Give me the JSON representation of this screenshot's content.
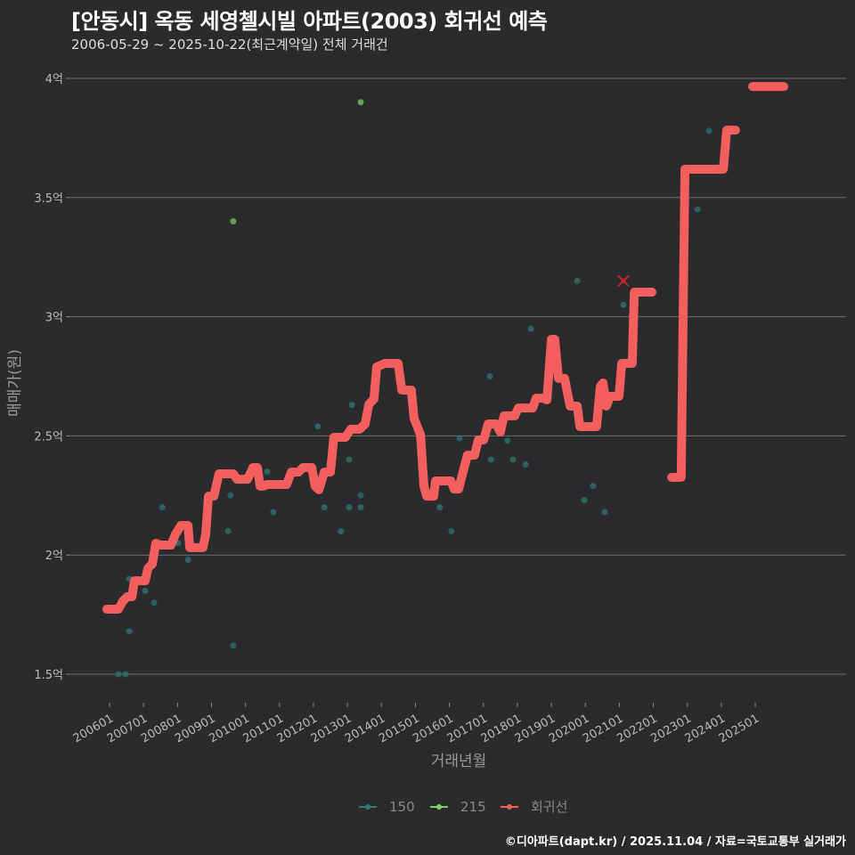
{
  "header": {
    "title": "[안동시] 옥동 세영첼시빌 아파트(2003) 회귀선 예측",
    "subtitle": "2006-05-29 ~ 2025-10-22(최근계약일) 전체 거래건"
  },
  "footer": "©디아파트(dapt.kr) / 2025.11.04 / 자료=국토교통부 실거래가",
  "chart_data": {
    "type": "scatter+line",
    "xlabel": "거래년월",
    "ylabel": "매매가(원)",
    "xlim": [
      2005.6,
      2026.2
    ],
    "ylim": [
      1.4,
      4.1
    ],
    "x_ticks": [
      {
        "value": 2006,
        "label": "200601"
      },
      {
        "value": 2007,
        "label": "200701"
      },
      {
        "value": 2008,
        "label": "200801"
      },
      {
        "value": 2009,
        "label": "200901"
      },
      {
        "value": 2010,
        "label": "201001"
      },
      {
        "value": 2011,
        "label": "201101"
      },
      {
        "value": 2012,
        "label": "201201"
      },
      {
        "value": 2013,
        "label": "201301"
      },
      {
        "value": 2014,
        "label": "201401"
      },
      {
        "value": 2015,
        "label": "201501"
      },
      {
        "value": 2016,
        "label": "201601"
      },
      {
        "value": 2017,
        "label": "201701"
      },
      {
        "value": 2018,
        "label": "201801"
      },
      {
        "value": 2019,
        "label": "201901"
      },
      {
        "value": 2020,
        "label": "202001"
      },
      {
        "value": 2021,
        "label": "202101"
      },
      {
        "value": 2022,
        "label": "202201"
      },
      {
        "value": 2023,
        "label": "202301"
      },
      {
        "value": 2024,
        "label": "202401"
      },
      {
        "value": 2025,
        "label": "202501"
      }
    ],
    "y_ticks": [
      {
        "value": 1.5,
        "label": "1.5억"
      },
      {
        "value": 2,
        "label": "2억"
      },
      {
        "value": 2.5,
        "label": "2.5억"
      },
      {
        "value": 3,
        "label": "3억"
      },
      {
        "value": 3.5,
        "label": "3.5억"
      },
      {
        "value": 4,
        "label": "4억"
      }
    ],
    "grid": true,
    "legend_position": "bottom",
    "legend": [
      {
        "name": "150",
        "color": "#2e7a78"
      },
      {
        "name": "215",
        "color": "#7ed36a"
      },
      {
        "name": "회귀선",
        "color": "#f25f5c"
      }
    ],
    "series": [
      {
        "name": "150",
        "type": "scatter",
        "color": "#2e7a78",
        "points": [
          [
            2006.26,
            1.5
          ],
          [
            2006.47,
            1.5
          ],
          [
            2006.58,
            1.68
          ],
          [
            2006.58,
            1.9
          ],
          [
            2007.05,
            1.85
          ],
          [
            2007.31,
            1.8
          ],
          [
            2007.55,
            2.2
          ],
          [
            2008.02,
            2.05
          ],
          [
            2008.31,
            1.98
          ],
          [
            2009.49,
            2.1
          ],
          [
            2009.56,
            2.25
          ],
          [
            2009.64,
            1.62
          ],
          [
            2010.64,
            2.35
          ],
          [
            2010.82,
            2.18
          ],
          [
            2012.13,
            2.54
          ],
          [
            2012.32,
            2.2
          ],
          [
            2012.81,
            2.1
          ],
          [
            2013.05,
            2.4
          ],
          [
            2013.13,
            2.63
          ],
          [
            2013.05,
            2.2
          ],
          [
            2013.39,
            2.25
          ],
          [
            2013.39,
            2.2
          ],
          [
            2015.72,
            2.2
          ],
          [
            2016.06,
            2.1
          ],
          [
            2016.3,
            2.49
          ],
          [
            2017.19,
            2.75
          ],
          [
            2017.22,
            2.4
          ],
          [
            2017.71,
            2.48
          ],
          [
            2017.87,
            2.4
          ],
          [
            2018.24,
            2.38
          ],
          [
            2018.4,
            2.95
          ],
          [
            2019.76,
            3.15
          ],
          [
            2019.97,
            2.23
          ],
          [
            2020.23,
            2.29
          ],
          [
            2020.57,
            2.18
          ],
          [
            2021.12,
            3.05
          ],
          [
            2023.3,
            3.45
          ],
          [
            2023.64,
            3.78
          ]
        ]
      },
      {
        "name": "215",
        "type": "scatter",
        "color": "#7ed36a",
        "points": [
          [
            2009.64,
            3.4
          ],
          [
            2013.39,
            3.9
          ]
        ]
      },
      {
        "name": "outlier",
        "type": "marker-x",
        "color": "#c0262a",
        "points": [
          [
            2021.12,
            3.15
          ]
        ]
      },
      {
        "name": "회귀선",
        "type": "line",
        "color": "#f25f5c",
        "segments": [
          [
            [
              2005.92,
              1.773
            ],
            [
              2006.26,
              1.773
            ],
            [
              2006.39,
              1.806
            ],
            [
              2006.52,
              1.825
            ],
            [
              2006.66,
              1.825
            ],
            [
              2006.73,
              1.892
            ],
            [
              2007.05,
              1.892
            ],
            [
              2007.13,
              1.945
            ],
            [
              2007.26,
              1.963
            ],
            [
              2007.36,
              2.049
            ],
            [
              2007.49,
              2.042
            ],
            [
              2007.81,
              2.042
            ],
            [
              2007.94,
              2.087
            ],
            [
              2008.1,
              2.124
            ],
            [
              2008.31,
              2.124
            ],
            [
              2008.36,
              2.031
            ],
            [
              2008.75,
              2.031
            ],
            [
              2008.83,
              2.087
            ],
            [
              2008.91,
              2.247
            ],
            [
              2009.07,
              2.247
            ],
            [
              2009.22,
              2.341
            ],
            [
              2009.64,
              2.341
            ],
            [
              2009.75,
              2.318
            ],
            [
              2010.06,
              2.318
            ],
            [
              2010.22,
              2.367
            ],
            [
              2010.35,
              2.367
            ],
            [
              2010.43,
              2.289
            ],
            [
              2010.53,
              2.289
            ],
            [
              2010.64,
              2.296
            ],
            [
              2011.21,
              2.296
            ],
            [
              2011.35,
              2.348
            ],
            [
              2011.56,
              2.348
            ],
            [
              2011.69,
              2.367
            ],
            [
              2011.95,
              2.367
            ],
            [
              2012.05,
              2.289
            ],
            [
              2012.16,
              2.274
            ],
            [
              2012.32,
              2.348
            ],
            [
              2012.5,
              2.348
            ],
            [
              2012.6,
              2.494
            ],
            [
              2012.94,
              2.494
            ],
            [
              2013.1,
              2.528
            ],
            [
              2013.36,
              2.528
            ],
            [
              2013.52,
              2.55
            ],
            [
              2013.63,
              2.632
            ],
            [
              2013.78,
              2.655
            ],
            [
              2013.86,
              2.789
            ],
            [
              2014.1,
              2.804
            ],
            [
              2014.49,
              2.804
            ],
            [
              2014.6,
              2.692
            ],
            [
              2014.88,
              2.692
            ],
            [
              2014.96,
              2.573
            ],
            [
              2015.15,
              2.505
            ],
            [
              2015.25,
              2.289
            ],
            [
              2015.33,
              2.247
            ],
            [
              2015.54,
              2.247
            ],
            [
              2015.59,
              2.311
            ],
            [
              2016.04,
              2.311
            ],
            [
              2016.14,
              2.277
            ],
            [
              2016.27,
              2.277
            ],
            [
              2016.4,
              2.348
            ],
            [
              2016.53,
              2.419
            ],
            [
              2016.74,
              2.419
            ],
            [
              2016.85,
              2.483
            ],
            [
              2017.01,
              2.483
            ],
            [
              2017.14,
              2.55
            ],
            [
              2017.37,
              2.55
            ],
            [
              2017.5,
              2.516
            ],
            [
              2017.61,
              2.584
            ],
            [
              2017.92,
              2.584
            ],
            [
              2018.03,
              2.617
            ],
            [
              2018.45,
              2.617
            ],
            [
              2018.55,
              2.658
            ],
            [
              2018.76,
              2.658
            ],
            [
              2018.87,
              2.651
            ],
            [
              2019.0,
              2.905
            ],
            [
              2019.1,
              2.905
            ],
            [
              2019.21,
              2.741
            ],
            [
              2019.39,
              2.741
            ],
            [
              2019.55,
              2.625
            ],
            [
              2019.76,
              2.625
            ],
            [
              2019.84,
              2.539
            ],
            [
              2020.33,
              2.539
            ],
            [
              2020.44,
              2.707
            ],
            [
              2020.52,
              2.722
            ],
            [
              2020.62,
              2.625
            ],
            [
              2020.73,
              2.666
            ],
            [
              2020.99,
              2.666
            ],
            [
              2021.07,
              2.804
            ],
            [
              2021.38,
              2.804
            ],
            [
              2021.44,
              3.103
            ],
            [
              2021.96,
              3.103
            ]
          ],
          [
            [
              2022.54,
              2.326
            ],
            [
              2022.82,
              2.326
            ],
            [
              2022.93,
              3.619
            ],
            [
              2024.06,
              3.619
            ],
            [
              2024.16,
              3.783
            ],
            [
              2024.42,
              3.783
            ]
          ],
          [
            [
              2024.92,
              3.966
            ],
            [
              2025.84,
              3.966
            ]
          ]
        ]
      }
    ]
  }
}
